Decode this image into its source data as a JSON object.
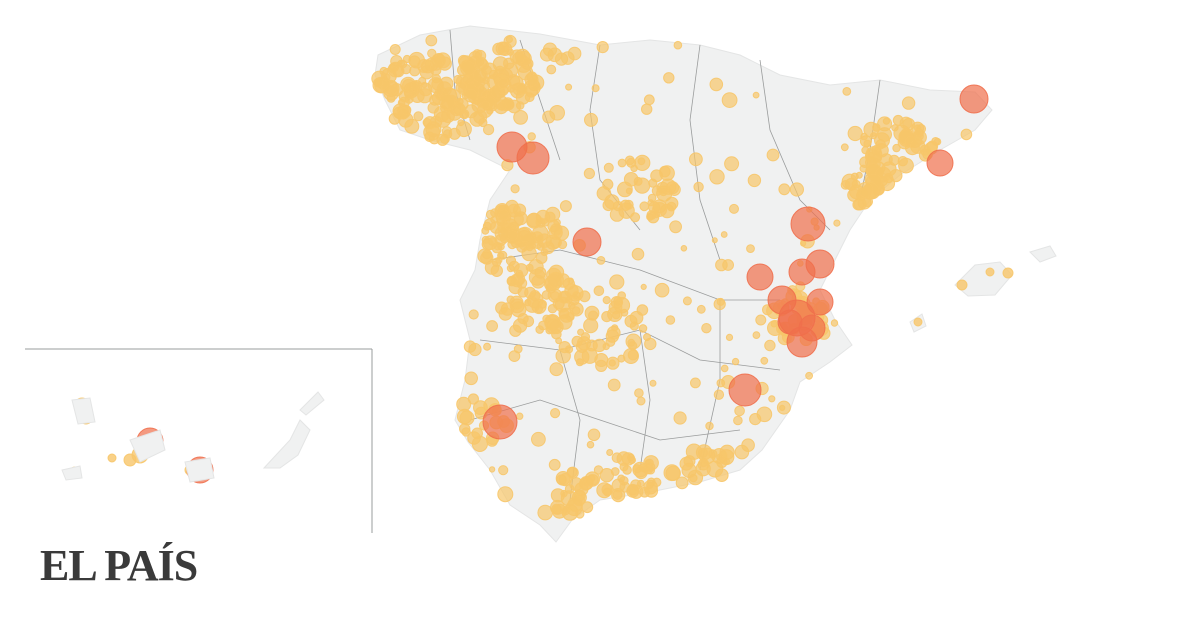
{
  "logo": "EL PAÍS"
}
